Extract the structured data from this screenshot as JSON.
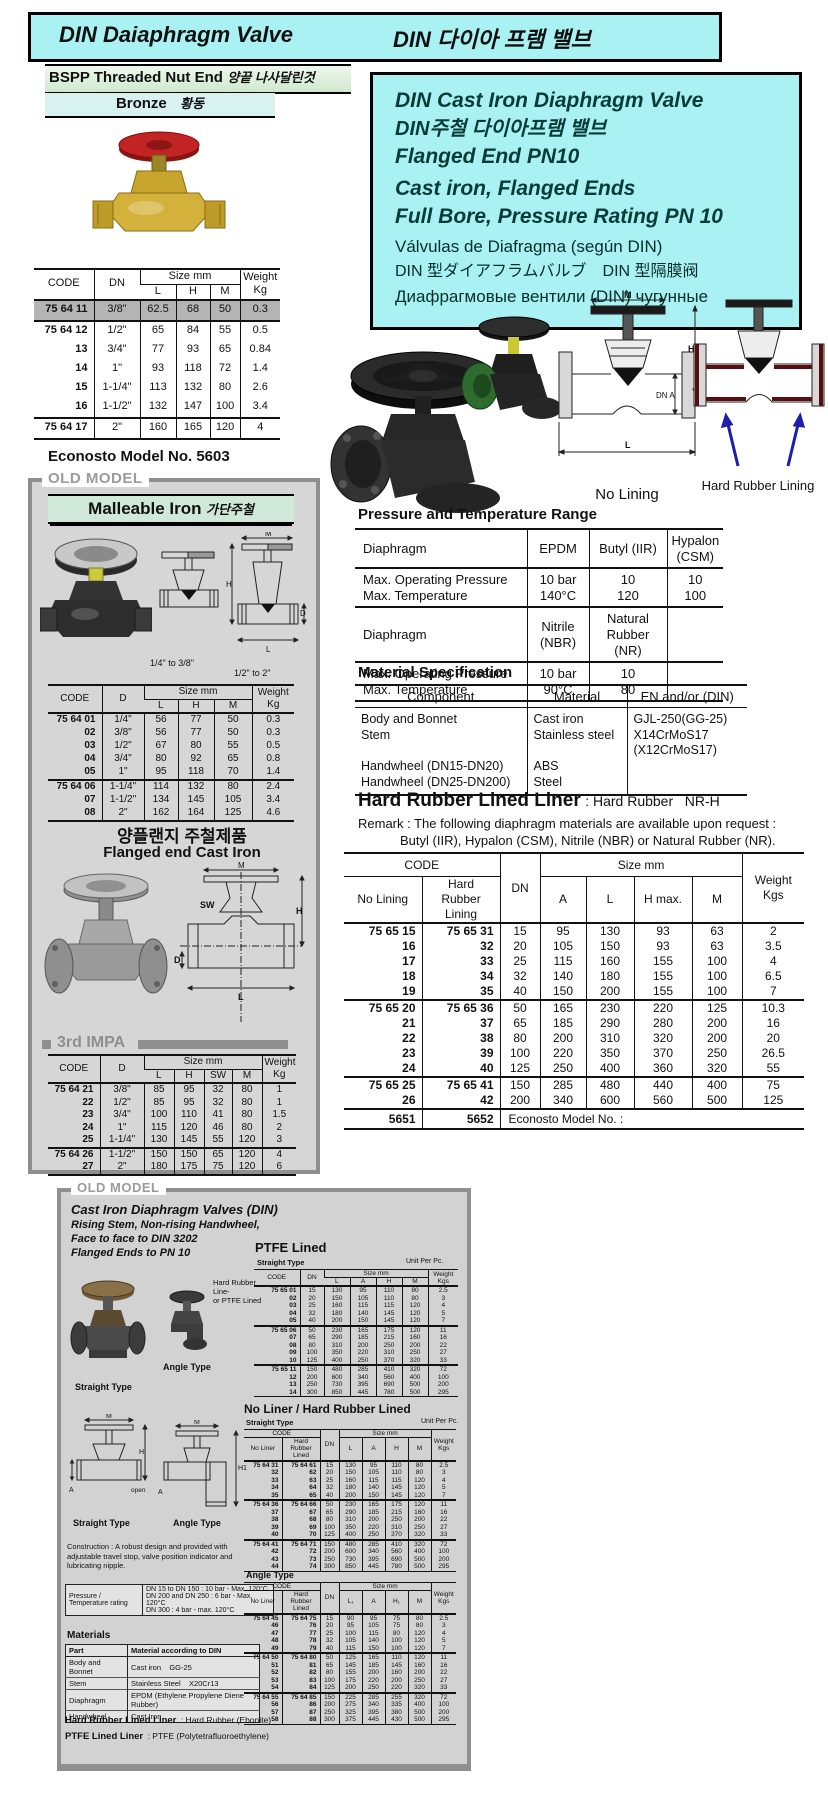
{
  "page_title": {
    "en": "DIN Daiaphragm Valve",
    "ko": "DIN 다이아 프램 밸브"
  },
  "labels": {
    "code": "CODE",
    "dn": "DN",
    "d": "D",
    "size_mm": "Size mm",
    "l": "L",
    "h": "H",
    "m": "M",
    "a": "A",
    "sw": "SW",
    "h_max": "H max.",
    "l1": "L₁",
    "h1": "H₁",
    "h1p": "H1",
    "open": "open",
    "dn_a": "DN A",
    "weight_kg": "Weight\nKg",
    "weight_kgs": "Weight\nKgs",
    "no_lining": "No Lining",
    "hard_rubber_lining": "Hard\nRubber\nLining",
    "no_liner": "No Liner",
    "hard_rubber_lined": "Hard\nRubber\nLined",
    "unit_per_pc": "Unit Per Pc.",
    "straight_type": "Straight Type",
    "angle_type": "Angle Type"
  },
  "colors": {
    "cyan": "#a9f1f2",
    "teal_text": "#083c38",
    "box_gray": "#d6d6d6",
    "border_gray": "#8f8f8f",
    "highlight": "#b4b4b4",
    "green_band": "#cfe8d8",
    "red_wheel": "#c22323",
    "brass": "#d3b13a",
    "lining_red": "#5a0d10",
    "arrow_blue": "#1d1db0"
  },
  "left": {
    "bspp_en": "BSPP Threaded Nut End",
    "bspp_ko": "양끝 나사달린것",
    "bronze_en": "Bronze",
    "bronze_ko": "황동",
    "bronze_table": {
      "rows": [
        [
          "75 64 11",
          "3/8\"",
          "62.5",
          "68",
          "50",
          "0.3"
        ],
        [
          "75 64 12",
          "1/2\"",
          "65",
          "84",
          "55",
          "0.5"
        ],
        [
          "13",
          "3/4\"",
          "77",
          "93",
          "65",
          "0.84"
        ],
        [
          "14",
          "1\"",
          "93",
          "118",
          "72",
          "1.4"
        ],
        [
          "15",
          "1-1/4\"",
          "113",
          "132",
          "80",
          "2.6"
        ],
        [
          "16",
          "1-1/2\"",
          "132",
          "147",
          "100",
          "3.4"
        ],
        [
          "75 64 17",
          "2\"",
          "160",
          "165",
          "120",
          "4"
        ]
      ]
    },
    "econosto": "Econosto Model No. 5603",
    "old_model": "OLD MODEL",
    "malleable_en": "Malleable Iron",
    "malleable_ko": "가단주철",
    "caption_small": "1/4\" to 3/8\"",
    "caption_large": "1/2\" to 2\"",
    "malleable_table": {
      "rows": [
        [
          "75 64 01",
          "1/4\"",
          "56",
          "77",
          "50",
          "0.3"
        ],
        [
          "02",
          "3/8\"",
          "56",
          "77",
          "50",
          "0.3"
        ],
        [
          "03",
          "1/2\"",
          "67",
          "80",
          "55",
          "0.5"
        ],
        [
          "04",
          "3/4\"",
          "80",
          "92",
          "65",
          "0.8"
        ],
        [
          "05",
          "1\"",
          "95",
          "118",
          "70",
          "1.4"
        ],
        [
          "75 64 06",
          "1-1/4\"",
          "114",
          "132",
          "80",
          "2.4"
        ],
        [
          "07",
          "1-1/2\"",
          "134",
          "145",
          "105",
          "3.4"
        ],
        [
          "08",
          "2\"",
          "162",
          "164",
          "125",
          "4.6"
        ]
      ]
    },
    "flanged_ko": "양플랜지 주철제품",
    "flanged_en": "Flanged end Cast Iron",
    "impa": "3rd IMPA",
    "impa_table": {
      "rows": [
        [
          "75 64 21",
          "3/8\"",
          "85",
          "95",
          "32",
          "80",
          "1"
        ],
        [
          "22",
          "1/2\"",
          "85",
          "95",
          "32",
          "80",
          "1"
        ],
        [
          "23",
          "3/4\"",
          "100",
          "110",
          "41",
          "80",
          "1.5"
        ],
        [
          "24",
          "1\"",
          "115",
          "120",
          "46",
          "80",
          "2"
        ],
        [
          "25",
          "1-1/4\"",
          "130",
          "145",
          "55",
          "120",
          "3"
        ],
        [
          "75 64 26",
          "1-1/2\"",
          "150",
          "150",
          "65",
          "120",
          "4"
        ],
        [
          "27",
          "2\"",
          "180",
          "175",
          "75",
          "120",
          "6"
        ]
      ]
    }
  },
  "right": {
    "box_lines": [
      "DIN Cast Iron Diaphragm Valve",
      "DIN주철 다이아프램 밸브",
      "Flanged End PN10",
      "Cast iron, Flanged Ends",
      "Full Bore, Pressure Rating PN 10",
      "Válvulas de Diafragma (según DIN)",
      "DIN 型ダイアフラムバルブ　DIN 型隔膜阀",
      "Диафрагмовые вентили (DIN) чугунные"
    ],
    "no_lining_caption": "No Lining",
    "hard_rubber_caption": "Hard Rubber Lining",
    "pt_title": "Pressure and Temperature Range",
    "pt_rows": [
      [
        "Diaphragm",
        "EPDM",
        "Butyl (IIR)",
        "Hypalon\n(CSM)"
      ],
      [
        "Max. Operating Pressure\nMax. Temperature",
        "10 bar\n140°C",
        "10\n120",
        "10\n100"
      ],
      [
        "Diaphragm",
        "Nitrile\n(NBR)",
        "Natural\nRubber (NR)",
        ""
      ],
      [
        "Max. Operating Pressure\nMax. Temperature",
        "10 bar\n90°C",
        "10\n80",
        ""
      ]
    ],
    "ms_title": "Material Specification",
    "ms_headers": [
      "Component",
      "Material",
      "EN and/or (DIN)"
    ],
    "ms_component": "Body and Bonnet\nStem\n\nHandwheel (DN15-DN20)\nHandwheel (DN25-DN200)",
    "ms_material": "Cast iron\nStainless steel\n\nABS\nSteel",
    "ms_en_din": "GJL-250(GG-25)\nX14CrMoS17\n(X12CrMoS17)",
    "hrl_title": "Hard Rubber Lined Liner",
    "hrl_rest": ": Hard Rubber   NR-H",
    "remark1": "Remark : The following diaphragm materials are available upon request :",
    "remark2": "Butyl (IIR), Hypalon (CSM), Nitrile (NBR) or Natural Rubber (NR).",
    "main_table": {
      "rows": [
        [
          "75 65 15",
          "75 65 31",
          "15",
          "95",
          "130",
          "93",
          "63",
          "2"
        ],
        [
          "16",
          "32",
          "20",
          "105",
          "150",
          "93",
          "63",
          "3.5"
        ],
        [
          "17",
          "33",
          "25",
          "115",
          "160",
          "155",
          "100",
          "4"
        ],
        [
          "18",
          "34",
          "32",
          "140",
          "180",
          "155",
          "100",
          "6.5"
        ],
        [
          "19",
          "35",
          "40",
          "150",
          "200",
          "155",
          "100",
          "7"
        ],
        [
          "75 65 20",
          "75 65 36",
          "50",
          "165",
          "230",
          "220",
          "125",
          "10.3"
        ],
        [
          "21",
          "37",
          "65",
          "185",
          "290",
          "280",
          "200",
          "16"
        ],
        [
          "22",
          "38",
          "80",
          "200",
          "310",
          "320",
          "200",
          "20"
        ],
        [
          "23",
          "39",
          "100",
          "220",
          "350",
          "370",
          "250",
          "26.5"
        ],
        [
          "24",
          "40",
          "125",
          "250",
          "400",
          "360",
          "320",
          "55"
        ],
        [
          "75 65 25",
          "75 65 41",
          "150",
          "285",
          "480",
          "440",
          "400",
          "75"
        ],
        [
          "26",
          "42",
          "200",
          "340",
          "600",
          "560",
          "500",
          "125"
        ]
      ]
    },
    "model_left": "5651",
    "model_right": "5652",
    "model_note": "Econosto Model No. :"
  },
  "bottom": {
    "old_model": "OLD MODEL",
    "title": "Cast Iron Diaphragm Valves (DIN)",
    "sub1": "Rising Stem, Non-rising Handwheel,",
    "sub2": "Face to face to DIN 3202",
    "sub3": "Flanged Ends to PN 10",
    "liner_note": "Hard Rubber Line-\nor PTFE Lined",
    "construction": "Construction : A robust design and provided with adjustable travel stop, valve position indicator and lubricating nipple.",
    "pt_label": "Pressure / Temperature rating",
    "pt_lines": [
      "DN 15 to DN 150 : 10 bar - Max. 120°C",
      "DN 200 and DN 250 : 6 bar - Max. 120°C",
      "DN 300 : 4 bar - max. 120°C"
    ],
    "materials_title": "Materials",
    "materials_headers": [
      "Part",
      "Material according to DIN"
    ],
    "materials_rows": [
      [
        "Body and Bonnet",
        "Cast iron    GG-25"
      ],
      [
        "Stem",
        "Stainless Steel    X20Cr13"
      ],
      [
        "Diaphragm",
        "EPDM (Ethylene Propylene Diene Rubber)"
      ],
      [
        "Handwheel",
        "Cast Iron"
      ]
    ],
    "hr_liner_bold": "Hard Rubber Lined Liner",
    "hr_liner_rest": ": Hard Rubber (Ebonite)",
    "ptfe_liner_bold": "PTFE Lined Liner",
    "ptfe_liner_rest": ": PTFE (Polytetrafluoroethylene)",
    "ptfe_title": "PTFE Lined",
    "noliner_title": "No Liner / Hard Rubber Lined",
    "ptfe_table": {
      "rows": [
        [
          "75 65 01",
          "15",
          "130",
          "95",
          "110",
          "80",
          "2.5"
        ],
        [
          "02",
          "20",
          "150",
          "105",
          "110",
          "80",
          "3"
        ],
        [
          "03",
          "25",
          "160",
          "115",
          "115",
          "120",
          "4"
        ],
        [
          "04",
          "32",
          "180",
          "140",
          "145",
          "120",
          "5"
        ],
        [
          "05",
          "40",
          "200",
          "150",
          "145",
          "120",
          "7"
        ],
        [
          "75 65 06",
          "50",
          "230",
          "165",
          "175",
          "120",
          "11"
        ],
        [
          "07",
          "65",
          "290",
          "185",
          "215",
          "160",
          "16"
        ],
        [
          "08",
          "80",
          "310",
          "200",
          "250",
          "200",
          "22"
        ],
        [
          "09",
          "100",
          "350",
          "220",
          "310",
          "250",
          "27"
        ],
        [
          "10",
          "125",
          "400",
          "250",
          "370",
          "320",
          "33"
        ],
        [
          "75 65 11",
          "150",
          "480",
          "285",
          "410",
          "320",
          "72"
        ],
        [
          "12",
          "200",
          "600",
          "340",
          "560",
          "400",
          "100"
        ],
        [
          "13",
          "250",
          "730",
          "395",
          "690",
          "500",
          "200"
        ],
        [
          "14",
          "300",
          "850",
          "445",
          "780",
          "500",
          "295"
        ]
      ]
    },
    "straight_table": {
      "rows": [
        [
          "75 64 31",
          "75 64 61",
          "15",
          "130",
          "95",
          "110",
          "80",
          "2.5"
        ],
        [
          "32",
          "62",
          "20",
          "150",
          "105",
          "110",
          "80",
          "3"
        ],
        [
          "33",
          "63",
          "25",
          "160",
          "115",
          "115",
          "120",
          "4"
        ],
        [
          "34",
          "64",
          "32",
          "180",
          "140",
          "145",
          "120",
          "5"
        ],
        [
          "35",
          "65",
          "40",
          "200",
          "150",
          "145",
          "120",
          "7"
        ],
        [
          "75 64 36",
          "75 64 66",
          "50",
          "230",
          "165",
          "175",
          "120",
          "11"
        ],
        [
          "37",
          "67",
          "65",
          "290",
          "185",
          "215",
          "160",
          "16"
        ],
        [
          "38",
          "68",
          "80",
          "310",
          "200",
          "250",
          "200",
          "22"
        ],
        [
          "39",
          "69",
          "100",
          "350",
          "220",
          "310",
          "250",
          "27"
        ],
        [
          "40",
          "70",
          "125",
          "400",
          "250",
          "370",
          "320",
          "33"
        ],
        [
          "75 64 41",
          "75 64 71",
          "150",
          "480",
          "285",
          "410",
          "320",
          "72"
        ],
        [
          "42",
          "72",
          "200",
          "600",
          "340",
          "560",
          "400",
          "100"
        ],
        [
          "43",
          "73",
          "250",
          "730",
          "395",
          "690",
          "500",
          "200"
        ],
        [
          "44",
          "74",
          "300",
          "850",
          "445",
          "780",
          "500",
          "295"
        ]
      ]
    },
    "angle_table": {
      "rows": [
        [
          "75 64 45",
          "75 64 75",
          "15",
          "90",
          "95",
          "75",
          "80",
          "2.5"
        ],
        [
          "46",
          "76",
          "20",
          "95",
          "105",
          "75",
          "80",
          "3"
        ],
        [
          "47",
          "77",
          "25",
          "100",
          "115",
          "80",
          "120",
          "4"
        ],
        [
          "48",
          "78",
          "32",
          "105",
          "140",
          "100",
          "120",
          "5"
        ],
        [
          "49",
          "79",
          "40",
          "115",
          "150",
          "100",
          "120",
          "7"
        ],
        [
          "75 64 50",
          "75 64 80",
          "50",
          "125",
          "165",
          "110",
          "120",
          "11"
        ],
        [
          "51",
          "81",
          "65",
          "145",
          "185",
          "145",
          "160",
          "16"
        ],
        [
          "52",
          "82",
          "80",
          "155",
          "200",
          "160",
          "200",
          "22"
        ],
        [
          "53",
          "83",
          "100",
          "175",
          "220",
          "200",
          "250",
          "27"
        ],
        [
          "54",
          "84",
          "125",
          "200",
          "250",
          "220",
          "320",
          "33"
        ],
        [
          "75 64 55",
          "75 64 85",
          "150",
          "225",
          "285",
          "255",
          "320",
          "72"
        ],
        [
          "56",
          "86",
          "200",
          "275",
          "340",
          "335",
          "400",
          "100"
        ],
        [
          "57",
          "87",
          "250",
          "325",
          "395",
          "380",
          "500",
          "200"
        ],
        [
          "58",
          "88",
          "300",
          "375",
          "445",
          "430",
          "500",
          "295"
        ]
      ]
    }
  }
}
